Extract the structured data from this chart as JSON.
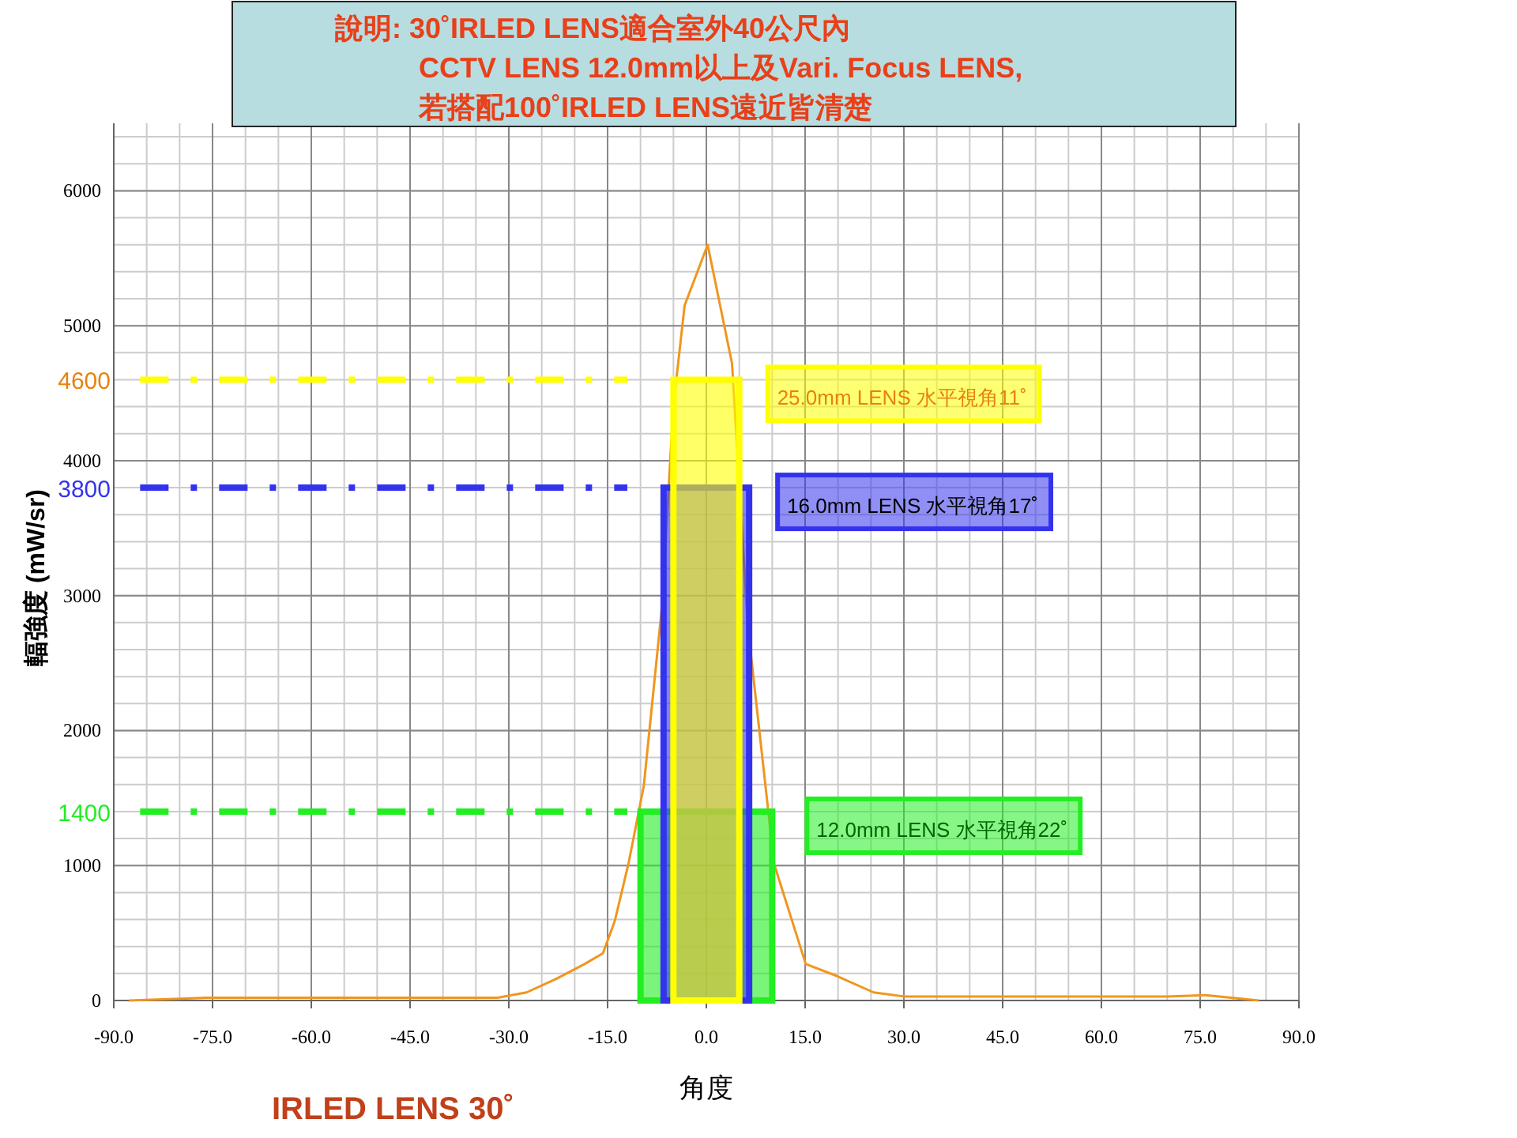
{
  "chart_data": {
    "type": "line",
    "xlabel": "角度",
    "ylabel": "輻強度 (mW/sr)",
    "annotations": [
      "說明: 30˚IRLED LENS適合室外40公尺內\nCCTV LENS 12.0mm以上及Vari. Focus LENS,\n若搭配100˚IRLED LENS遠近皆清楚",
      "IRLED LENS 30˚"
    ],
    "xlim": [
      -90,
      90
    ],
    "ylim": [
      0,
      6500
    ],
    "xticks": [
      {
        "value": -90,
        "label": "-90.0"
      },
      {
        "value": -75,
        "label": "-75.0"
      },
      {
        "value": -60,
        "label": "-60.0"
      },
      {
        "value": -45,
        "label": "-45.0"
      },
      {
        "value": -30,
        "label": "-30.0"
      },
      {
        "value": -15,
        "label": "-15.0"
      },
      {
        "value": 0,
        "label": "0.0"
      },
      {
        "value": 15,
        "label": "15.0"
      },
      {
        "value": 30,
        "label": "30.0"
      },
      {
        "value": 45,
        "label": "45.0"
      },
      {
        "value": 60,
        "label": "60.0"
      },
      {
        "value": 75,
        "label": "75.0"
      },
      {
        "value": 90,
        "label": "90.0"
      }
    ],
    "yticks": [
      0,
      1000,
      2000,
      3000,
      4000,
      5000,
      6000
    ],
    "grid": true,
    "series": [
      {
        "color": "#f0961e",
        "x": [
          -87.7,
          -76,
          -31.7,
          -27.3,
          -22.8,
          -18.5,
          -15.7,
          -13.9,
          -11.8,
          -9.5,
          -6.8,
          -5.0,
          -3.3,
          0.2,
          3.9,
          6.3,
          10.3,
          15.1,
          19.9,
          25.4,
          30,
          45,
          60,
          70,
          75.8,
          83.9
        ],
        "values": [
          0,
          20,
          20,
          60,
          160,
          270,
          350,
          590,
          1020,
          1590,
          2890,
          4410,
          5150,
          5600,
          4720,
          2770,
          1010,
          270,
          180,
          60,
          30,
          30,
          30,
          30,
          40,
          0
        ]
      },
      {
        "type": "area",
        "name": "12.0mm LENS 水平視角22˚",
        "color": "#22ee22",
        "x": [
          -10,
          10
        ],
        "values": [
          1400,
          1400
        ]
      },
      {
        "type": "area",
        "name": "16.0mm LENS 水平視角17˚",
        "color": "#3333ee",
        "x": [
          -6.5,
          6.5
        ],
        "values": [
          3800,
          3800
        ]
      },
      {
        "type": "area",
        "name": "25.0mm LENS 水平視角11˚",
        "color": "#ffff00",
        "x": [
          -5,
          5
        ],
        "values": [
          4600,
          4600
        ]
      }
    ],
    "ref_lines": [
      {
        "axis": "y",
        "value": 4600,
        "label": "4600",
        "color": "#ffff00",
        "line_style": "dashed"
      },
      {
        "axis": "y",
        "value": 3800,
        "label": "3800",
        "color": "#3333ee",
        "line_style": "dashed"
      },
      {
        "axis": "y",
        "value": 1400,
        "label": "1400",
        "color": "#22ee22",
        "line_style": "dashed"
      }
    ]
  }
}
